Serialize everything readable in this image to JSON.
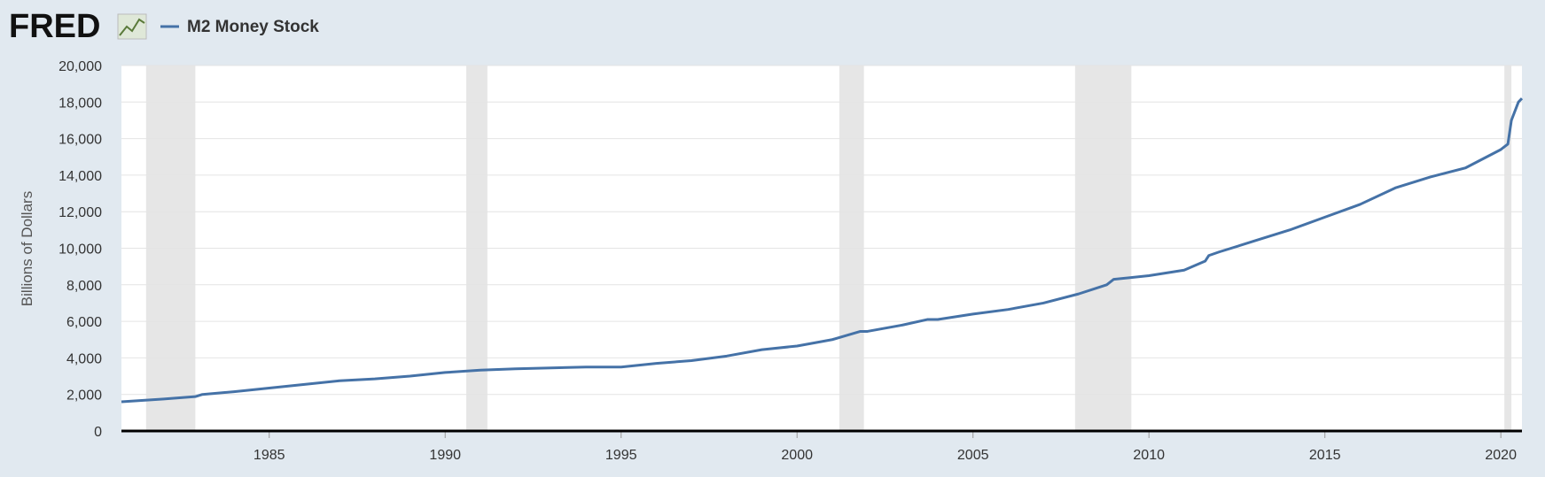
{
  "logo": "FRED",
  "chart_data": {
    "type": "line",
    "y_label": "Billions of Dollars",
    "x": [
      1980.8,
      1982,
      1982.9,
      1983.1,
      1984,
      1985,
      1986,
      1987,
      1988,
      1989,
      1990,
      1991,
      1992,
      1993,
      1994,
      1995,
      1996,
      1997,
      1998,
      1999,
      2000,
      2001,
      2001.8,
      2002,
      2003,
      2003.7,
      2004,
      2005,
      2006,
      2007,
      2008,
      2008.8,
      2009,
      2010,
      2011,
      2011.6,
      2011.7,
      2012,
      2013,
      2014,
      2015,
      2016,
      2017,
      2018,
      2019,
      2020,
      2020.2,
      2020.3,
      2020.5,
      2020.6
    ],
    "series": [
      {
        "name": "M2 Money Stock",
        "color": "#4572a7",
        "values": [
          1600,
          1750,
          1880,
          2000,
          2150,
          2350,
          2550,
          2750,
          2850,
          3000,
          3200,
          3330,
          3400,
          3450,
          3500,
          3500,
          3700,
          3850,
          4100,
          4450,
          4650,
          5000,
          5450,
          5450,
          5800,
          6100,
          6100,
          6400,
          6650,
          7000,
          7500,
          8000,
          8300,
          8500,
          8800,
          9300,
          9600,
          9800,
          10400,
          11000,
          11700,
          12400,
          13300,
          13900,
          14400,
          15400,
          15700,
          17000,
          18000,
          18200
        ]
      }
    ],
    "recessions": [
      [
        1981.5,
        1982.9
      ],
      [
        1990.6,
        1991.2
      ],
      [
        2001.2,
        2001.9
      ],
      [
        2007.9,
        2009.5
      ],
      [
        2020.1,
        2020.3
      ]
    ],
    "xlim": [
      1980.8,
      2020.6
    ],
    "xticks": [
      1985,
      1990,
      1995,
      2000,
      2005,
      2010,
      2015,
      2020
    ],
    "ylim": [
      0,
      20000
    ],
    "yticks": [
      0,
      {
        "value": 2000,
        "label": "2,000"
      },
      {
        "value": 4000,
        "label": "4,000"
      },
      {
        "value": 6000,
        "label": "6,000"
      },
      {
        "value": 8000,
        "label": "8,000"
      },
      {
        "value": 10000,
        "label": "10,000"
      },
      {
        "value": 12000,
        "label": "12,000"
      },
      {
        "value": 14000,
        "label": "14,000"
      },
      {
        "value": 16000,
        "label": "16,000"
      },
      {
        "value": 18000,
        "label": "18,000"
      },
      {
        "value": 20000,
        "label": "20,000"
      }
    ],
    "grid": true,
    "recession_color": "#e6e6e6"
  }
}
